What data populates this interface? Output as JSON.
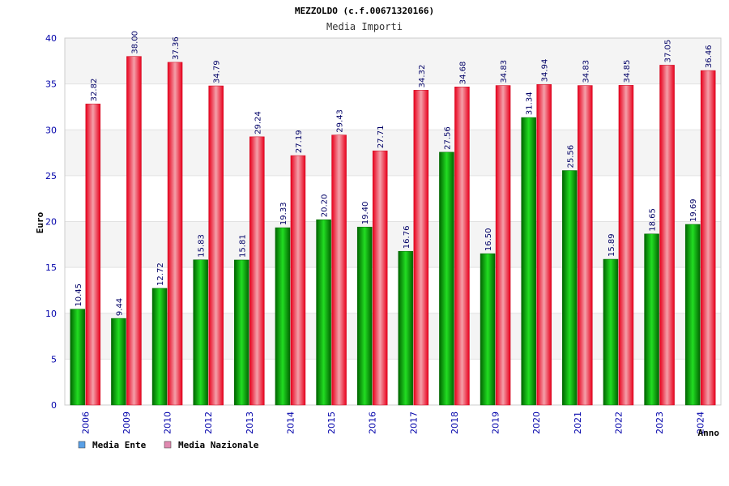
{
  "chart_data": {
    "type": "bar",
    "title": "MEZZOLDO (c.f.00671320166)",
    "subtitle": "Media Importi",
    "xlabel": "Anno",
    "ylabel": "Euro",
    "ylim": [
      0,
      40
    ],
    "yticks": [
      0,
      5,
      10,
      15,
      20,
      25,
      30,
      35,
      40
    ],
    "grid": true,
    "legend_position": "bottom-left",
    "categories": [
      "2006",
      "2009",
      "2010",
      "2012",
      "2013",
      "2014",
      "2015",
      "2016",
      "2017",
      "2018",
      "2019",
      "2020",
      "2021",
      "2022",
      "2023",
      "2024"
    ],
    "series": [
      {
        "name": "Media Ente",
        "color": "#00b000",
        "legend_color": "#5aa0e6",
        "values": [
          10.45,
          9.44,
          12.72,
          15.83,
          15.81,
          19.33,
          20.2,
          19.4,
          16.76,
          27.56,
          16.5,
          31.34,
          25.56,
          15.89,
          18.65,
          19.69
        ],
        "labels": [
          "10.45",
          "9.44",
          "12.72",
          "15.83",
          "15.81",
          "19.33",
          "20.20",
          "19.40",
          "16.76",
          "27.56",
          "16.50",
          "31.34",
          "25.56",
          "15.89",
          "18.65",
          "19.69"
        ]
      },
      {
        "name": "Media Nazionale",
        "color": "#e8102a",
        "legend_color": "#e089b0",
        "values": [
          32.82,
          38.0,
          37.36,
          34.79,
          29.24,
          27.19,
          29.43,
          27.71,
          34.32,
          34.68,
          34.83,
          34.94,
          34.83,
          34.85,
          37.05,
          36.46
        ],
        "labels": [
          "32.82",
          "38.00",
          "37.36",
          "34.79",
          "29.24",
          "27.19",
          "29.43",
          "27.71",
          "34.32",
          "34.68",
          "34.83",
          "34.94",
          "34.83",
          "34.85",
          "37.05",
          "36.46"
        ]
      }
    ]
  }
}
